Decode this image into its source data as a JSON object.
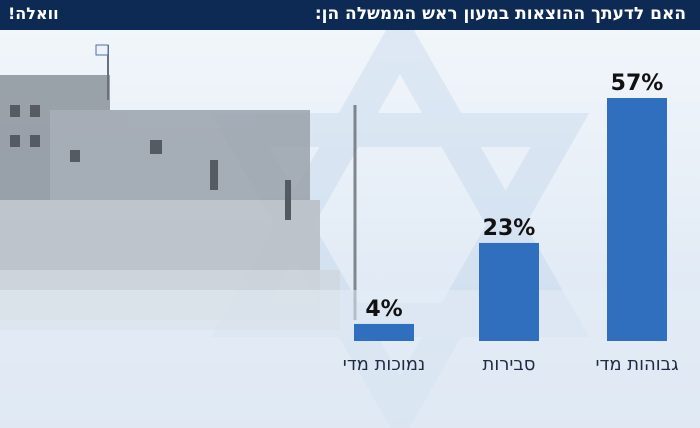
{
  "header": {
    "title": "האם לדעתך ההוצאות במעון ראש הממשלה הן:",
    "logo_text": "וואלה!",
    "background_color": "#0d2a55"
  },
  "colors": {
    "bar": "#2f6fbe",
    "bar_dark": "#245ca3",
    "label_text": "#1f2a44"
  },
  "chart_data": {
    "type": "bar",
    "categories": [
      "גבוהות מדי",
      "סבירות",
      "נמוכות מדי"
    ],
    "values": [
      57,
      23,
      4
    ],
    "value_labels": [
      "57%",
      "23%",
      "4%"
    ],
    "title": "האם לדעתך ההוצאות במעון ראש הממשלה הן:",
    "xlabel": "",
    "ylabel": "",
    "ylim": [
      0,
      57
    ],
    "grid": false,
    "legend": "none"
  }
}
